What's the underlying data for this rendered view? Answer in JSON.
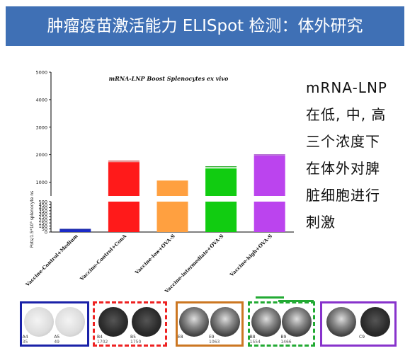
{
  "header": {
    "title": "肿瘤疫苗激活能力 ELISpot 检测：体外研究",
    "bg_color": "#3f70b5"
  },
  "side_text": {
    "lines": [
      "mRNA-LNP",
      "在低, 中, 高",
      "三个浓度下",
      "在体外对脾",
      "脏细胞进行",
      "刺激"
    ]
  },
  "chart_data": {
    "type": "bar",
    "title": "mRNA-LNP Boost Splenocytes ex vivo",
    "ylabel": "Pots/1.5*10⁵ splenocyte ns",
    "axis_break": {
      "lower": [
        0,
        500
      ],
      "upper": [
        500,
        5000
      ]
    },
    "yticks_lower": [
      0,
      50,
      100,
      150,
      200,
      250,
      300,
      350,
      400,
      450,
      500
    ],
    "yticks_upper": [
      1000,
      2000,
      3000,
      4000,
      5000
    ],
    "categories": [
      "Vaccine-Control+Medium",
      "Vaccine-Control+ConA",
      "Vaccine-low+OVA-S",
      "Vaccine-intermediate+OVA-S",
      "Vaccine-high+OVA-S"
    ],
    "values": [
      40,
      1730,
      1060,
      1500,
      1970
    ],
    "errors": [
      6,
      35,
      0,
      60,
      25
    ],
    "colors": [
      "#1a2ac8",
      "#ff1a1a",
      "#ffa040",
      "#11cc11",
      "#bb44ee"
    ]
  },
  "elispot": {
    "panels": [
      {
        "border_color": "#1a22a8",
        "border_style": "solid",
        "wells": [
          {
            "label": "A4",
            "count": "35",
            "tone": "light"
          },
          {
            "label": "A5",
            "count": "49",
            "tone": "light"
          }
        ]
      },
      {
        "border_color": "#ee2222",
        "border_style": "dashed",
        "wells": [
          {
            "label": "B4",
            "count": "1702",
            "tone": "dark"
          },
          {
            "label": "B5",
            "count": "1750",
            "tone": "dark"
          }
        ]
      },
      {
        "border_color": "#cc7722",
        "border_style": "solid",
        "wells": [
          {
            "label": "E8",
            "count": "",
            "tone": "medium"
          },
          {
            "label": "E9",
            "count": "1063",
            "tone": "medium"
          }
        ]
      },
      {
        "border_color": "#22aa33",
        "border_style": "dashed",
        "wells": [
          {
            "label": "B8",
            "count": "1554",
            "tone": "medium"
          },
          {
            "label": "B9",
            "count": "1466",
            "tone": "medium"
          }
        ]
      },
      {
        "border_color": "#8833cc",
        "border_style": "solid",
        "wells": [
          {
            "label": "",
            "count": "",
            "tone": "medium"
          },
          {
            "label": "C9",
            "count": "",
            "tone": "dark"
          }
        ]
      }
    ]
  }
}
